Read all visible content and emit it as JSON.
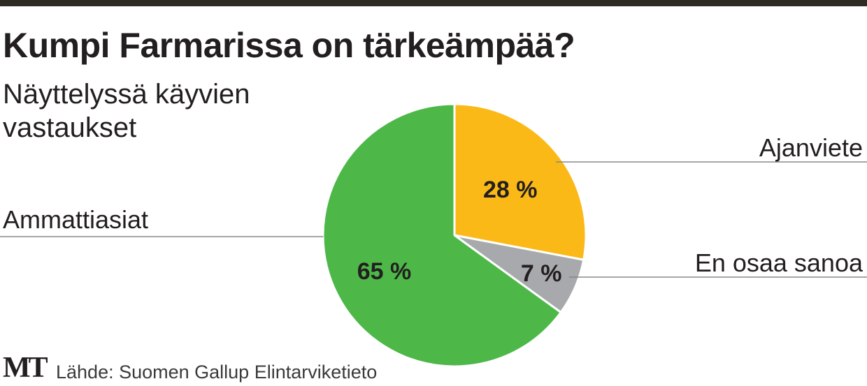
{
  "chart_data": {
    "type": "pie",
    "title": "Kumpi Farmarissa on tärkeämpää?",
    "subtitle": "Näyttelyssä käyvien vastaukset",
    "slices": [
      {
        "label": "Ajanviete",
        "value": 28,
        "value_label": "28 %",
        "color": "#fbb917"
      },
      {
        "label": "En osaa sanoa",
        "value": 7,
        "value_label": "7 %",
        "color": "#a7a9ac"
      },
      {
        "label": "Ammattiasiat",
        "value": 65,
        "value_label": "65 %",
        "color": "#4db848"
      }
    ],
    "unit": "%"
  },
  "footer": {
    "logo": "MT",
    "source": "Lähde: Suomen Gallup Elintarviketieto"
  },
  "colors": {
    "top_bar": "#2e2a24",
    "text": "#231f20",
    "leader_line": "#888888"
  }
}
